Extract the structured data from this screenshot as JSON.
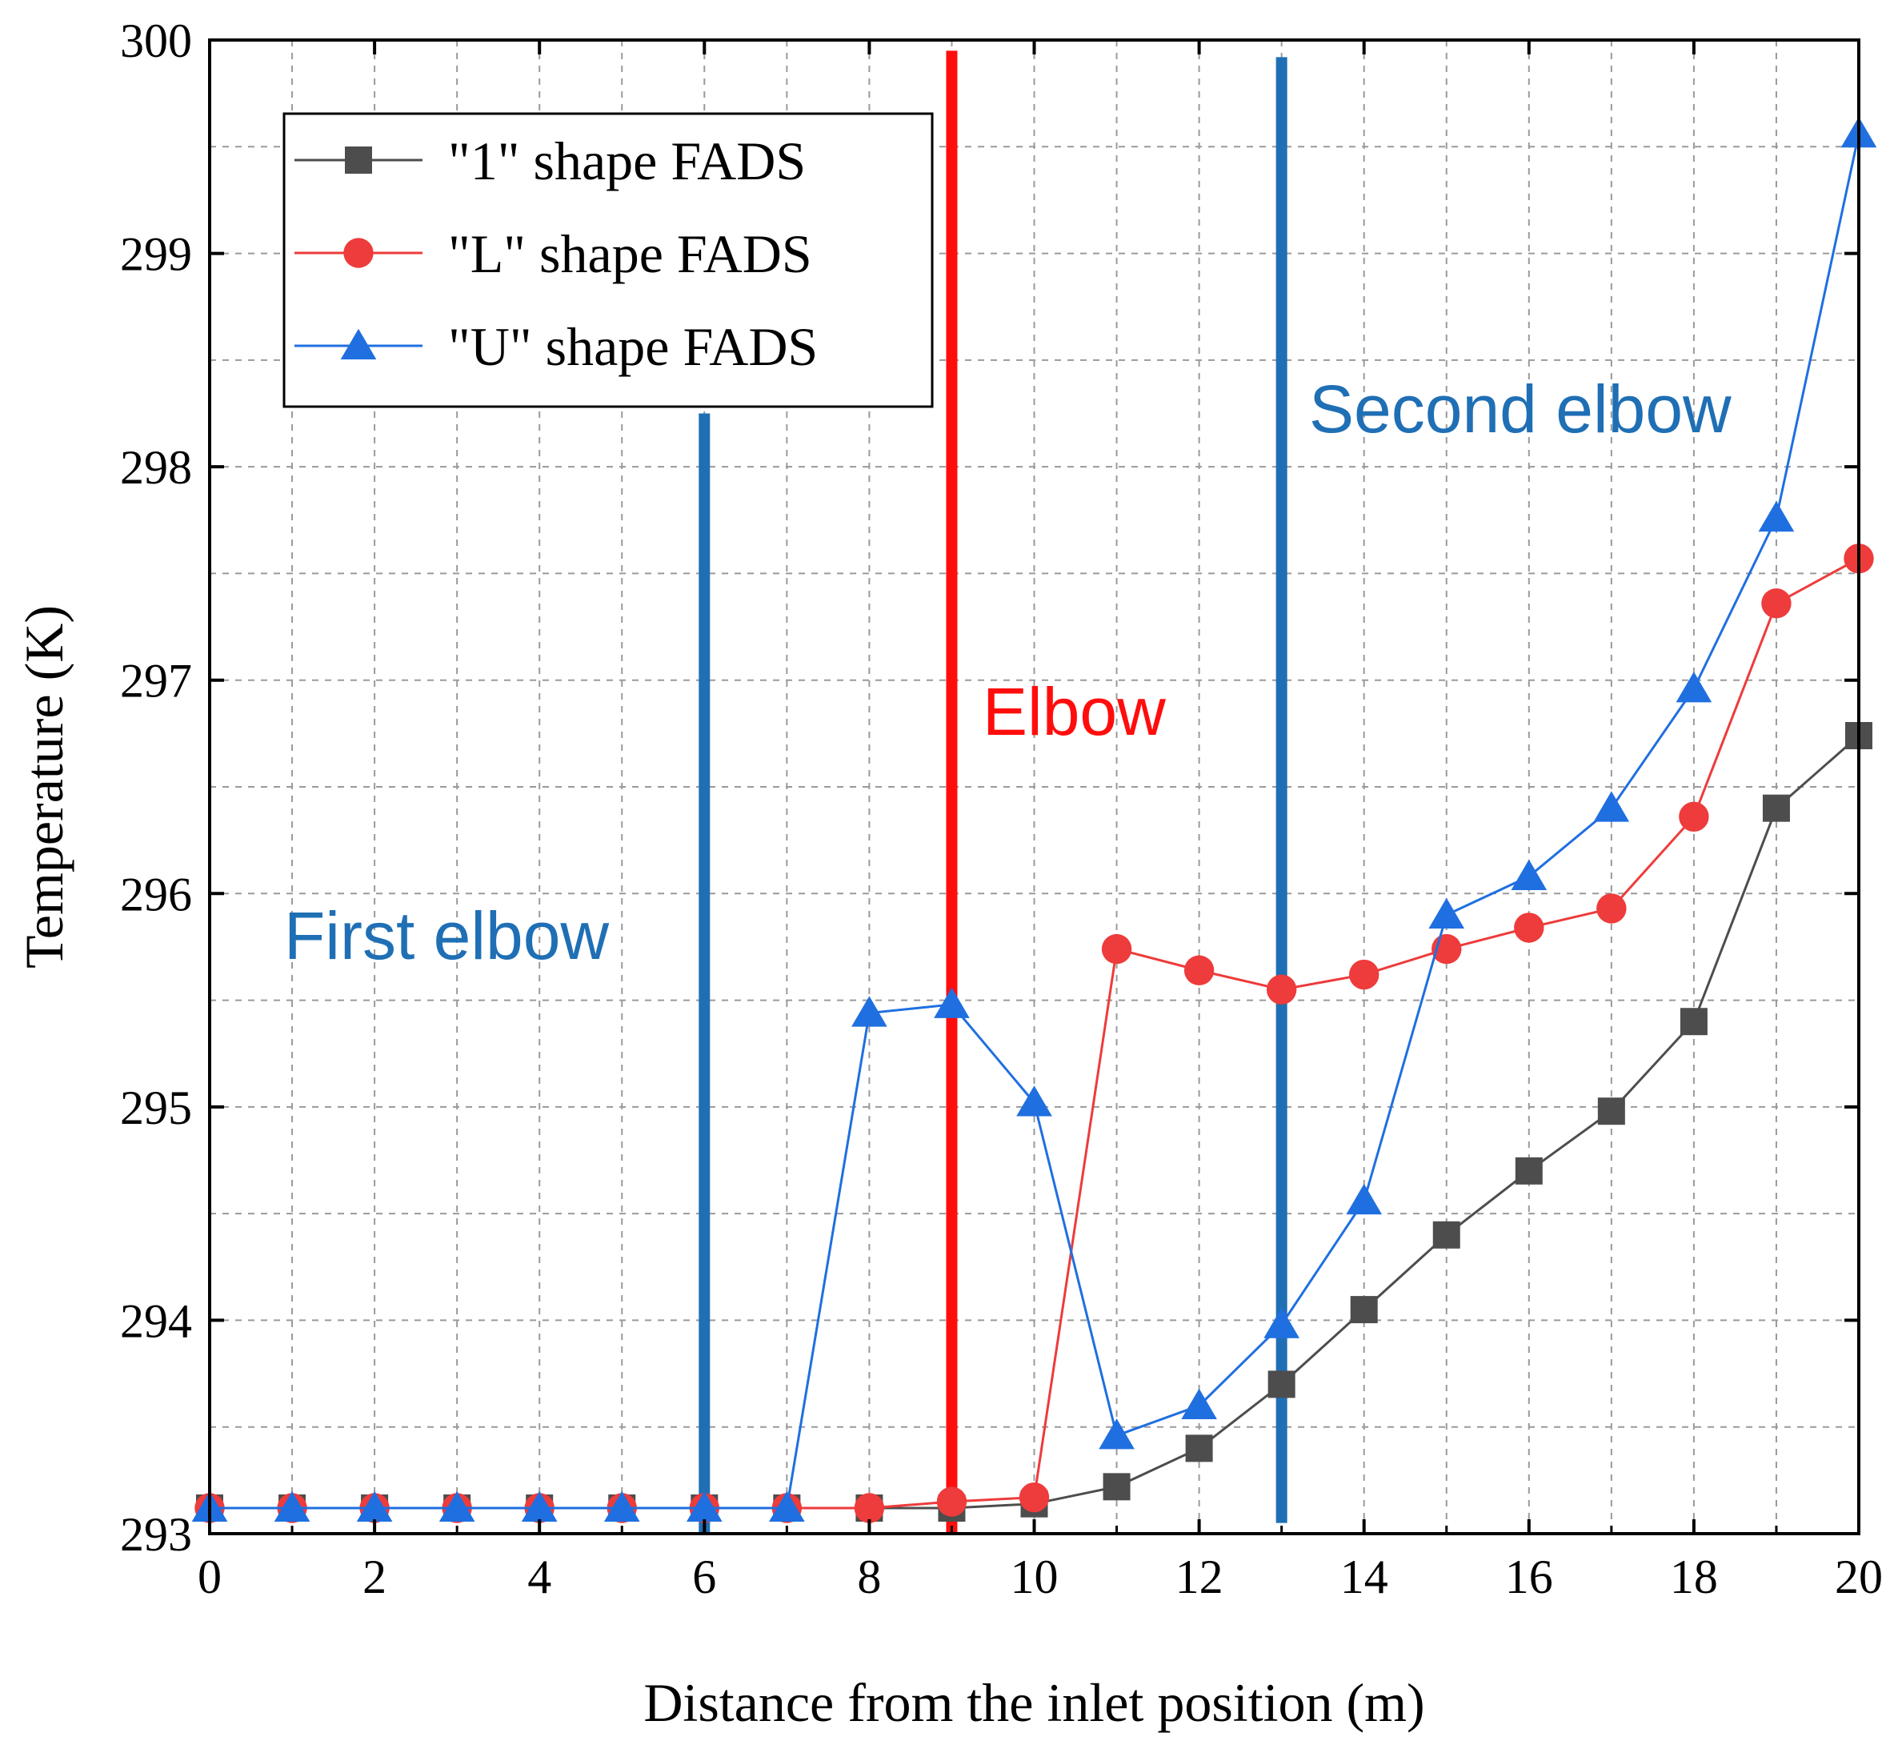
{
  "chart_data": {
    "type": "line",
    "xlabel": "Distance from the inlet position (m)",
    "ylabel": "Temperature (K)",
    "xlim": [
      0,
      20
    ],
    "ylim": [
      293,
      300
    ],
    "xticks": [
      0,
      2,
      4,
      6,
      8,
      10,
      12,
      14,
      16,
      18,
      20
    ],
    "yticks": [
      293,
      294,
      295,
      296,
      297,
      298,
      299,
      300
    ],
    "grid": true,
    "legend_position": "top-left",
    "series": [
      {
        "name": "\"1\" shape FADS",
        "color": "#4d4d4d",
        "marker": "square",
        "x": [
          0,
          1,
          2,
          3,
          4,
          5,
          6,
          7,
          8,
          9,
          10,
          11,
          12,
          13,
          14,
          15,
          16,
          17,
          18,
          19,
          20
        ],
        "y": [
          293.12,
          293.12,
          293.12,
          293.12,
          293.12,
          293.12,
          293.12,
          293.12,
          293.12,
          293.12,
          293.14,
          293.22,
          293.4,
          293.7,
          294.05,
          294.4,
          294.7,
          294.98,
          295.4,
          296.4,
          296.74
        ]
      },
      {
        "name": "\"L\" shape FADS",
        "color": "#ee3b3b",
        "marker": "circle",
        "x": [
          0,
          1,
          2,
          3,
          4,
          5,
          6,
          7,
          8,
          9,
          10,
          11,
          12,
          13,
          14,
          15,
          16,
          17,
          18,
          19,
          20
        ],
        "y": [
          293.12,
          293.12,
          293.12,
          293.12,
          293.12,
          293.12,
          293.12,
          293.12,
          293.12,
          293.15,
          293.17,
          295.74,
          295.64,
          295.55,
          295.62,
          295.74,
          295.84,
          295.93,
          296.36,
          297.36,
          297.57
        ]
      },
      {
        "name": "\"U\" shape FADS",
        "color": "#1f6fe0",
        "marker": "triangle",
        "x": [
          0,
          1,
          2,
          3,
          4,
          5,
          6,
          7,
          8,
          9,
          10,
          11,
          12,
          13,
          14,
          15,
          16,
          17,
          18,
          19,
          20
        ],
        "y": [
          293.12,
          293.12,
          293.12,
          293.12,
          293.12,
          293.12,
          293.12,
          293.12,
          295.44,
          295.48,
          295.02,
          293.46,
          293.6,
          293.98,
          294.56,
          295.9,
          296.08,
          296.4,
          296.96,
          297.76,
          299.56
        ]
      }
    ],
    "reference_lines": [
      {
        "label": "First elbow",
        "x": 6,
        "y_from": 293,
        "y_to": 298.25,
        "color": "#1f6fb5"
      },
      {
        "label": "Elbow",
        "x": 9,
        "y_from": 293,
        "y_to": 299.95,
        "color": "#ff0d0d"
      },
      {
        "label": "Second elbow",
        "x": 13,
        "y_from": 293.05,
        "y_to": 299.92,
        "color": "#1f6fb5"
      }
    ]
  }
}
